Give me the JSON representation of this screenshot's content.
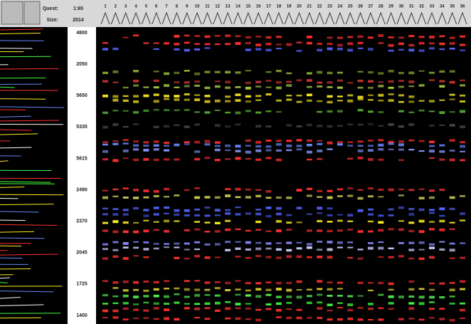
{
  "toolbar": {
    "quest_label": "Quest:",
    "quest_value": "1:65",
    "size_label": "Size:",
    "size_value": "2014"
  },
  "lanes": [
    "1",
    "2",
    "3",
    "4",
    "5",
    "6",
    "7",
    "8",
    "9",
    "10",
    "11",
    "12",
    "13",
    "14",
    "15",
    "16",
    "17",
    "18",
    "19",
    "20",
    "21",
    "22",
    "23",
    "24",
    "25",
    "26",
    "27",
    "28",
    "29",
    "30",
    "31",
    "32",
    "33",
    "34",
    "35",
    "36"
  ],
  "scale_labels": [
    "4800",
    "2050",
    "5650",
    "5335",
    "5615",
    "2490",
    "2370",
    "2045",
    "1725",
    "1400"
  ]
}
